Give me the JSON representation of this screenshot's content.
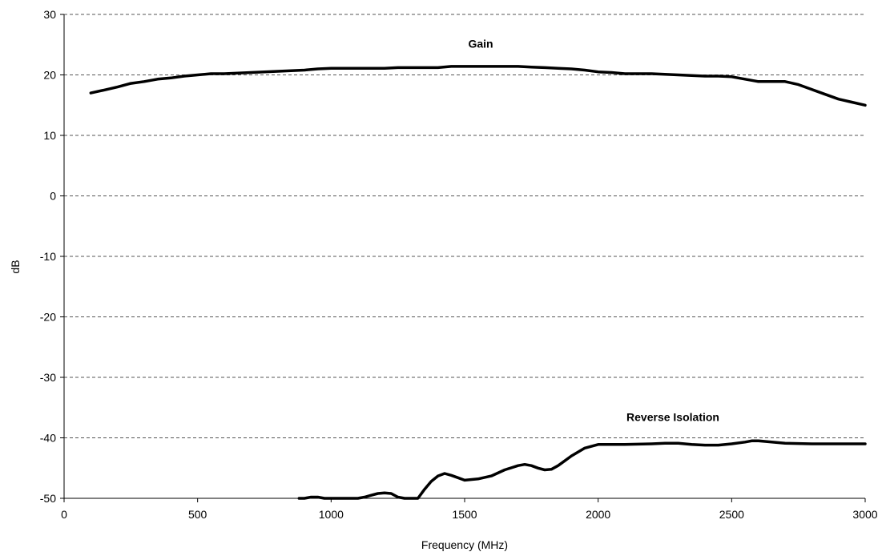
{
  "chart_data": {
    "type": "line",
    "xlabel": "Frequency (MHz)",
    "ylabel": "dB",
    "xlim": [
      0,
      3000
    ],
    "ylim": [
      -50,
      30
    ],
    "xticks": [
      0,
      500,
      1000,
      1500,
      2000,
      2500,
      3000
    ],
    "yticks": [
      -50,
      -40,
      -30,
      -20,
      -10,
      0,
      10,
      20,
      30
    ],
    "grid": "horizontal dashed",
    "series": [
      {
        "name": "Gain",
        "x": [
          100,
          150,
          200,
          250,
          300,
          350,
          400,
          450,
          500,
          550,
          600,
          650,
          700,
          750,
          800,
          850,
          900,
          950,
          1000,
          1050,
          1100,
          1150,
          1200,
          1250,
          1300,
          1350,
          1400,
          1450,
          1500,
          1550,
          1600,
          1650,
          1700,
          1750,
          1800,
          1850,
          1900,
          1950,
          2000,
          2050,
          2100,
          2150,
          2200,
          2250,
          2300,
          2350,
          2400,
          2450,
          2500,
          2550,
          2600,
          2650,
          2700,
          2750,
          2800,
          2850,
          2900,
          2950,
          3000
        ],
        "y": [
          17.0,
          17.5,
          18.0,
          18.6,
          18.9,
          19.3,
          19.5,
          19.8,
          20.0,
          20.2,
          20.2,
          20.3,
          20.4,
          20.5,
          20.6,
          20.7,
          20.8,
          21.0,
          21.1,
          21.1,
          21.1,
          21.1,
          21.1,
          21.2,
          21.2,
          21.2,
          21.2,
          21.4,
          21.4,
          21.4,
          21.4,
          21.4,
          21.4,
          21.3,
          21.2,
          21.1,
          21.0,
          20.8,
          20.5,
          20.4,
          20.2,
          20.2,
          20.2,
          20.1,
          20.0,
          19.9,
          19.8,
          19.8,
          19.7,
          19.3,
          18.9,
          18.9,
          18.9,
          18.4,
          17.6,
          16.8,
          16.0,
          15.5,
          15.0
        ]
      },
      {
        "name": "Reverse Isolation",
        "x": [
          880,
          900,
          925,
          950,
          975,
          1000,
          1050,
          1100,
          1125,
          1150,
          1175,
          1200,
          1225,
          1250,
          1275,
          1300,
          1325,
          1350,
          1375,
          1400,
          1425,
          1450,
          1475,
          1500,
          1550,
          1600,
          1650,
          1700,
          1725,
          1750,
          1775,
          1800,
          1825,
          1850,
          1875,
          1900,
          1950,
          2000,
          2100,
          2200,
          2250,
          2300,
          2350,
          2400,
          2450,
          2500,
          2550,
          2575,
          2600,
          2700,
          2800,
          2900,
          3000
        ],
        "y": [
          -50.5,
          -50.2,
          -49.8,
          -49.8,
          -50.0,
          -50.0,
          -50.0,
          -50.0,
          -49.8,
          -49.5,
          -49.2,
          -49.1,
          -49.2,
          -49.8,
          -50.2,
          -50.4,
          -50.0,
          -48.5,
          -47.2,
          -46.3,
          -45.9,
          -46.2,
          -46.6,
          -47.0,
          -46.8,
          -46.3,
          -45.3,
          -44.6,
          -44.4,
          -44.6,
          -45.0,
          -45.3,
          -45.2,
          -44.6,
          -43.8,
          -43.0,
          -41.7,
          -41.1,
          -41.1,
          -41.0,
          -40.9,
          -40.9,
          -41.1,
          -41.2,
          -41.2,
          -41.0,
          -40.7,
          -40.5,
          -40.5,
          -40.9,
          -41.0,
          -41.0,
          -41.0
        ]
      }
    ],
    "annotations": [
      "Gain",
      "Reverse Isolation"
    ]
  }
}
